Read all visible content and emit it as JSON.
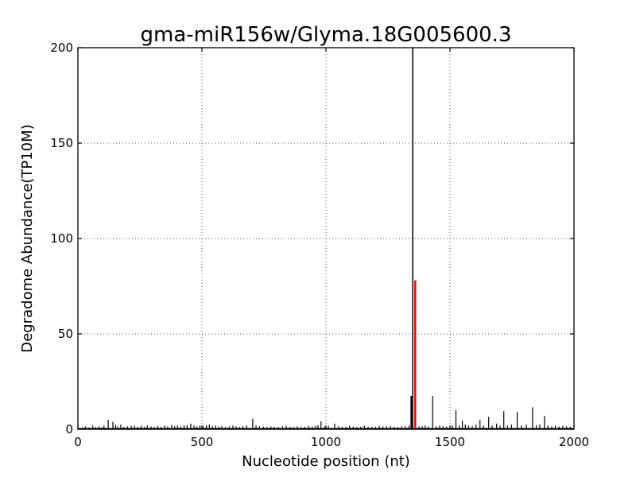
{
  "figure": {
    "background": "#ffffff",
    "frame_color": "#000000"
  },
  "chart_data": {
    "type": "bar",
    "title": "gma-miR156w/Glyma.18G005600.3",
    "xlabel": "Nucleotide position (nt)",
    "ylabel": "Degradome Abundance(TP10M)",
    "xlim": [
      0,
      2000
    ],
    "ylim": [
      0,
      200
    ],
    "xticks": [
      0,
      500,
      1000,
      1500,
      2000
    ],
    "yticks": [
      0,
      50,
      100,
      150,
      200
    ],
    "grid": {
      "style": "dotted",
      "color": "#555555",
      "x_gridlines": [
        500,
        1000,
        1500
      ],
      "y_gridlines": [
        50,
        100,
        150
      ]
    },
    "bar_color": "#000000",
    "highlight_color": "#ee0000",
    "baseline_noise_level": 0.7,
    "highlights": [
      {
        "x": 1344,
        "y": 17.5,
        "clipped": false,
        "color": "#000000",
        "width": 2,
        "name": "secondary-peak-at-cleavage-site"
      },
      {
        "x": 1350,
        "y": 200,
        "clipped": true,
        "color": "#000000",
        "width": 1.5,
        "name": "cleavage-site-marker-line"
      },
      {
        "x": 1360,
        "y": 78,
        "clipped": false,
        "color": "#ee0000",
        "width": 2.5,
        "name": "mirna-guided-cleavage-signal"
      }
    ],
    "spikes": [
      [
        20,
        1
      ],
      [
        30,
        1.5
      ],
      [
        45,
        1
      ],
      [
        60,
        2
      ],
      [
        72,
        1.2
      ],
      [
        85,
        1.5
      ],
      [
        95,
        1
      ],
      [
        105,
        2
      ],
      [
        122,
        5
      ],
      [
        141,
        4
      ],
      [
        152,
        2.5
      ],
      [
        160,
        1.5
      ],
      [
        173,
        2.5
      ],
      [
        185,
        1.2
      ],
      [
        200,
        1.5
      ],
      [
        215,
        1.8
      ],
      [
        228,
        2
      ],
      [
        242,
        1.3
      ],
      [
        255,
        1.8
      ],
      [
        268,
        1.2
      ],
      [
        280,
        2
      ],
      [
        295,
        1.5
      ],
      [
        308,
        1.2
      ],
      [
        322,
        1.8
      ],
      [
        335,
        1.3
      ],
      [
        350,
        2
      ],
      [
        362,
        1.5
      ],
      [
        378,
        2.3
      ],
      [
        390,
        1.6
      ],
      [
        402,
        2
      ],
      [
        415,
        1.4
      ],
      [
        428,
        2
      ],
      [
        440,
        2.2
      ],
      [
        455,
        3
      ],
      [
        468,
        2
      ],
      [
        480,
        1.5
      ],
      [
        492,
        2
      ],
      [
        505,
        1.6
      ],
      [
        518,
        2.2
      ],
      [
        530,
        2.5
      ],
      [
        542,
        1.6
      ],
      [
        555,
        2
      ],
      [
        568,
        1.4
      ],
      [
        580,
        1.6
      ],
      [
        595,
        1.2
      ],
      [
        610,
        1.5
      ],
      [
        625,
        2
      ],
      [
        638,
        1.5
      ],
      [
        652,
        1.3
      ],
      [
        665,
        1.6
      ],
      [
        680,
        2
      ],
      [
        705,
        5.5
      ],
      [
        718,
        2
      ],
      [
        732,
        1.6
      ],
      [
        748,
        1.3
      ],
      [
        762,
        1.2
      ],
      [
        778,
        1.5
      ],
      [
        792,
        1.3
      ],
      [
        808,
        1.2
      ],
      [
        825,
        1.5
      ],
      [
        840,
        1.8
      ],
      [
        855,
        1.3
      ],
      [
        870,
        1.2
      ],
      [
        885,
        1.5
      ],
      [
        900,
        1.2
      ],
      [
        915,
        1.3
      ],
      [
        930,
        1.8
      ],
      [
        945,
        1.4
      ],
      [
        958,
        1.8
      ],
      [
        968,
        2.2
      ],
      [
        980,
        4.2
      ],
      [
        995,
        1.5
      ],
      [
        1010,
        1.8
      ],
      [
        1035,
        3
      ],
      [
        1050,
        1.5
      ],
      [
        1065,
        1.2
      ],
      [
        1080,
        1.3
      ],
      [
        1095,
        1.8
      ],
      [
        1110,
        1.4
      ],
      [
        1125,
        1.2
      ],
      [
        1140,
        1.3
      ],
      [
        1155,
        1.8
      ],
      [
        1170,
        1.4
      ],
      [
        1185,
        1.2
      ],
      [
        1200,
        1.3
      ],
      [
        1215,
        1.8
      ],
      [
        1230,
        1.4
      ],
      [
        1245,
        1.6
      ],
      [
        1260,
        1.8
      ],
      [
        1275,
        1.4
      ],
      [
        1290,
        1.2
      ],
      [
        1305,
        1.5
      ],
      [
        1320,
        1.6
      ],
      [
        1335,
        2
      ],
      [
        1375,
        1.5
      ],
      [
        1388,
        1.6
      ],
      [
        1400,
        2
      ],
      [
        1412,
        1.5
      ],
      [
        1430,
        17.5
      ],
      [
        1445,
        1.5
      ],
      [
        1458,
        2
      ],
      [
        1472,
        1.5
      ],
      [
        1486,
        1.4
      ],
      [
        1500,
        1.6
      ],
      [
        1510,
        2
      ],
      [
        1524,
        10
      ],
      [
        1538,
        2
      ],
      [
        1550,
        4.5
      ],
      [
        1562,
        2.5
      ],
      [
        1575,
        2
      ],
      [
        1590,
        1.6
      ],
      [
        1605,
        2.5
      ],
      [
        1621,
        5
      ],
      [
        1635,
        2
      ],
      [
        1656,
        6.5
      ],
      [
        1670,
        2
      ],
      [
        1688,
        3
      ],
      [
        1702,
        2
      ],
      [
        1717,
        9.5
      ],
      [
        1732,
        2
      ],
      [
        1748,
        2.5
      ],
      [
        1771,
        9
      ],
      [
        1788,
        2
      ],
      [
        1808,
        2.5
      ],
      [
        1833,
        11.5
      ],
      [
        1848,
        2
      ],
      [
        1862,
        2.5
      ],
      [
        1881,
        7
      ],
      [
        1895,
        2
      ],
      [
        1910,
        1.5
      ],
      [
        1925,
        2
      ],
      [
        1940,
        1.5
      ],
      [
        1955,
        1.8
      ],
      [
        1970,
        1.5
      ],
      [
        1985,
        1.3
      ]
    ],
    "legend": null,
    "layout_hints": {
      "grid_on": true,
      "ticks_direction": "in",
      "box_frame": true
    }
  }
}
